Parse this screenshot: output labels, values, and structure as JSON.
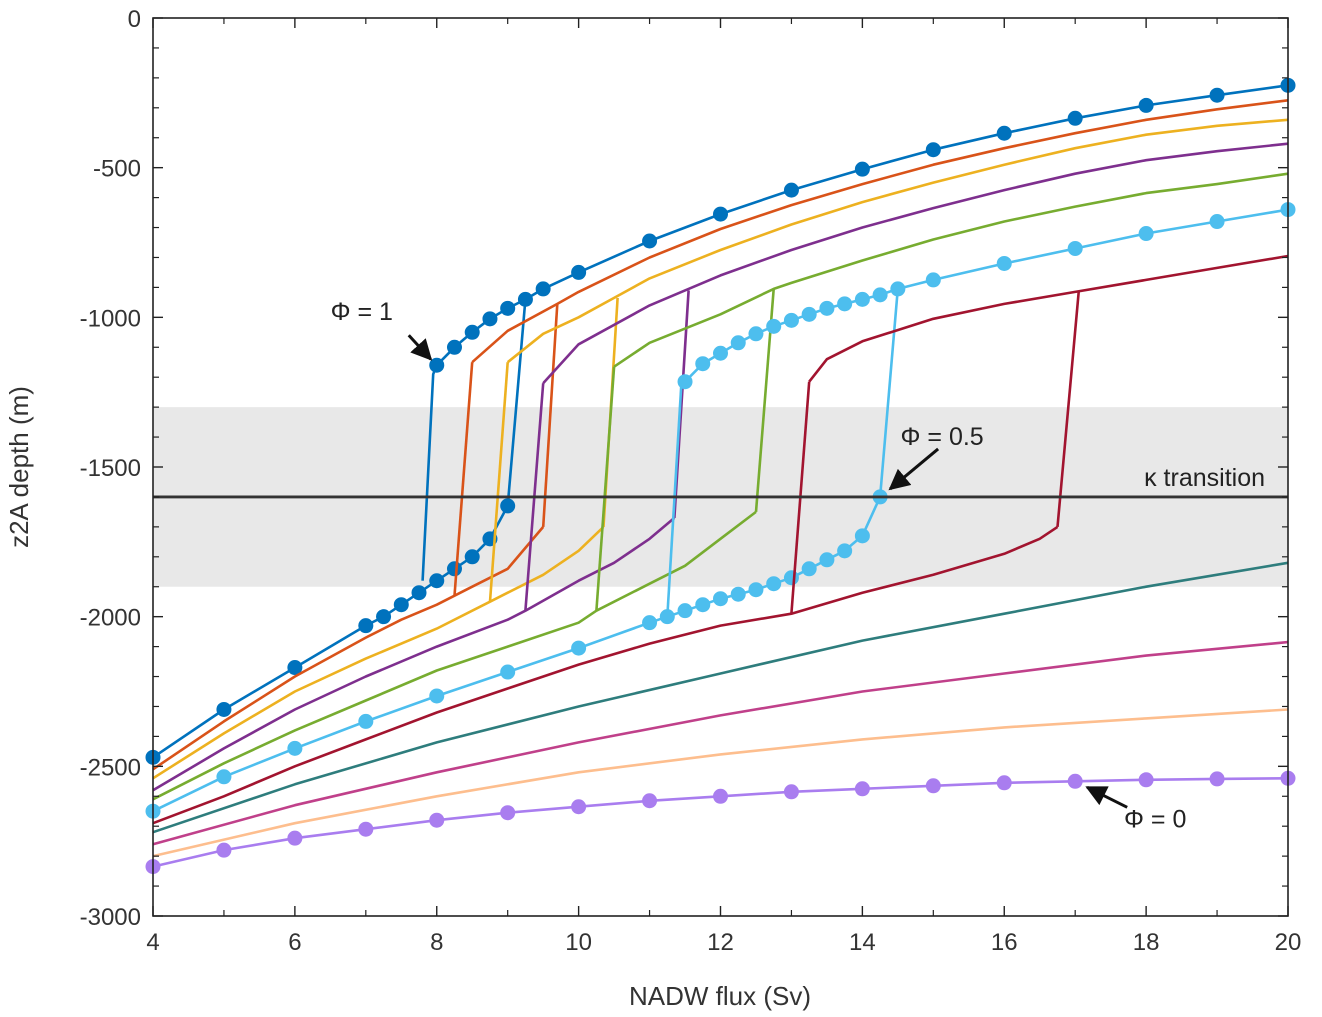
{
  "chart_data": {
    "type": "line",
    "title": "",
    "xlabel": "NADW flux (Sv)",
    "ylabel": "z2A depth (m)",
    "xlim": [
      4,
      20
    ],
    "ylim": [
      -3000,
      0
    ],
    "xticks": [
      4,
      6,
      8,
      10,
      12,
      14,
      16,
      18,
      20
    ],
    "yticks": [
      0,
      -500,
      -1000,
      -1500,
      -2000,
      -2500,
      -3000
    ],
    "grid": false,
    "legend": "none",
    "band": {
      "y": [
        -1900,
        -1300
      ],
      "color": "#e8e8e8"
    },
    "transition_line": {
      "y": -1600,
      "label": "κ transition",
      "color": "#333333"
    },
    "annotations": [
      {
        "text": "Φ = 1",
        "point": [
          8.0,
          -1160
        ]
      },
      {
        "text": "Φ = 0.5",
        "point": [
          14.25,
          -1600
        ]
      },
      {
        "text": "Φ = 0",
        "point": [
          17.0,
          -2550
        ]
      }
    ],
    "series": [
      {
        "color": "#0072BD",
        "markers": true,
        "upper": [
          [
            8.0,
            -1160
          ],
          [
            8.25,
            -1100
          ],
          [
            8.5,
            -1050
          ],
          [
            8.75,
            -1005
          ],
          [
            9.0,
            -970
          ],
          [
            9.25,
            -940
          ],
          [
            9.5,
            -905
          ],
          [
            10,
            -850
          ],
          [
            11,
            -745
          ],
          [
            12,
            -655
          ],
          [
            13,
            -575
          ],
          [
            14,
            -505
          ],
          [
            15,
            -440
          ],
          [
            16,
            -385
          ],
          [
            17,
            -335
          ],
          [
            18,
            -292
          ],
          [
            19,
            -258
          ],
          [
            20,
            -225
          ]
        ],
        "lower": [
          [
            4,
            -2470
          ],
          [
            5,
            -2310
          ],
          [
            6,
            -2170
          ],
          [
            7,
            -2030
          ],
          [
            7.25,
            -2000
          ],
          [
            7.5,
            -1960
          ],
          [
            7.75,
            -1920
          ],
          [
            8.0,
            -1880
          ],
          [
            8.25,
            -1840
          ],
          [
            8.5,
            -1800
          ],
          [
            8.75,
            -1740
          ],
          [
            9.0,
            -1630
          ]
        ],
        "up_jump": [
          [
            9.0,
            -1630
          ],
          [
            9.25,
            -940
          ]
        ],
        "down_jump": [
          [
            7.8,
            -1880
          ],
          [
            7.95,
            -1190
          ],
          [
            8.0,
            -1160
          ]
        ]
      },
      {
        "color": "#D95319",
        "markers": false,
        "upper": [
          [
            8.5,
            -1150
          ],
          [
            9,
            -1045
          ],
          [
            9.7,
            -955
          ],
          [
            10,
            -915
          ],
          [
            11,
            -800
          ],
          [
            12,
            -705
          ],
          [
            13,
            -625
          ],
          [
            14,
            -555
          ],
          [
            15,
            -490
          ],
          [
            16,
            -435
          ],
          [
            17,
            -385
          ],
          [
            18,
            -340
          ],
          [
            19,
            -305
          ],
          [
            20,
            -275
          ]
        ],
        "lower": [
          [
            4,
            -2510
          ],
          [
            5,
            -2350
          ],
          [
            6,
            -2200
          ],
          [
            7,
            -2070
          ],
          [
            7.5,
            -2010
          ],
          [
            8,
            -1960
          ],
          [
            8.5,
            -1900
          ],
          [
            9,
            -1840
          ],
          [
            9.5,
            -1700
          ]
        ],
        "up_jump": [
          [
            9.5,
            -1700
          ],
          [
            9.7,
            -955
          ]
        ],
        "down_jump": [
          [
            8.25,
            -1930
          ],
          [
            8.5,
            -1150
          ]
        ]
      },
      {
        "color": "#EDB120",
        "markers": false,
        "upper": [
          [
            9.0,
            -1150
          ],
          [
            9.5,
            -1055
          ],
          [
            10,
            -1000
          ],
          [
            10.5,
            -935
          ],
          [
            11,
            -870
          ],
          [
            12,
            -775
          ],
          [
            13,
            -690
          ],
          [
            14,
            -615
          ],
          [
            15,
            -550
          ],
          [
            16,
            -490
          ],
          [
            17,
            -435
          ],
          [
            18,
            -390
          ],
          [
            19,
            -360
          ],
          [
            20,
            -340
          ]
        ],
        "lower": [
          [
            4,
            -2540
          ],
          [
            5,
            -2390
          ],
          [
            6,
            -2250
          ],
          [
            7,
            -2140
          ],
          [
            8,
            -2040
          ],
          [
            8.75,
            -1950
          ],
          [
            9,
            -1920
          ],
          [
            9.5,
            -1860
          ],
          [
            10,
            -1780
          ],
          [
            10.35,
            -1700
          ]
        ],
        "up_jump": [
          [
            10.35,
            -1700
          ],
          [
            10.55,
            -935
          ]
        ],
        "down_jump": [
          [
            8.75,
            -1950
          ],
          [
            9.0,
            -1150
          ]
        ]
      },
      {
        "color": "#7E2F8E",
        "markers": false,
        "upper": [
          [
            9.5,
            -1220
          ],
          [
            10,
            -1090
          ],
          [
            11,
            -960
          ],
          [
            11.5,
            -910
          ],
          [
            12,
            -860
          ],
          [
            13,
            -775
          ],
          [
            14,
            -700
          ],
          [
            15,
            -635
          ],
          [
            16,
            -575
          ],
          [
            17,
            -520
          ],
          [
            18,
            -475
          ],
          [
            19,
            -445
          ],
          [
            20,
            -420
          ]
        ],
        "lower": [
          [
            4,
            -2580
          ],
          [
            5,
            -2440
          ],
          [
            6,
            -2310
          ],
          [
            7,
            -2200
          ],
          [
            8,
            -2100
          ],
          [
            9,
            -2010
          ],
          [
            9.25,
            -1980
          ],
          [
            10,
            -1880
          ],
          [
            10.5,
            -1820
          ],
          [
            11,
            -1740
          ],
          [
            11.35,
            -1670
          ]
        ],
        "up_jump": [
          [
            11.35,
            -1670
          ],
          [
            11.55,
            -910
          ]
        ],
        "down_jump": [
          [
            9.25,
            -1980
          ],
          [
            9.5,
            -1220
          ]
        ]
      },
      {
        "color": "#77AC30",
        "markers": false,
        "upper": [
          [
            10.5,
            -1165
          ],
          [
            11,
            -1085
          ],
          [
            12,
            -990
          ],
          [
            12.75,
            -905
          ],
          [
            13,
            -885
          ],
          [
            14,
            -810
          ],
          [
            15,
            -740
          ],
          [
            16,
            -680
          ],
          [
            17,
            -630
          ],
          [
            18,
            -585
          ],
          [
            19,
            -555
          ],
          [
            20,
            -520
          ]
        ],
        "lower": [
          [
            4,
            -2610
          ],
          [
            5,
            -2490
          ],
          [
            6,
            -2380
          ],
          [
            7,
            -2280
          ],
          [
            8,
            -2180
          ],
          [
            9,
            -2100
          ],
          [
            10,
            -2020
          ],
          [
            10.25,
            -1980
          ],
          [
            11,
            -1890
          ],
          [
            11.5,
            -1830
          ],
          [
            12,
            -1740
          ],
          [
            12.5,
            -1650
          ]
        ],
        "up_jump": [
          [
            12.5,
            -1650
          ],
          [
            12.75,
            -905
          ]
        ],
        "down_jump": [
          [
            10.25,
            -1980
          ],
          [
            10.5,
            -1165
          ]
        ]
      },
      {
        "color": "#4DBEEE",
        "markers": true,
        "upper": [
          [
            11.5,
            -1215
          ],
          [
            11.75,
            -1155
          ],
          [
            12.0,
            -1120
          ],
          [
            12.25,
            -1085
          ],
          [
            12.5,
            -1055
          ],
          [
            12.75,
            -1030
          ],
          [
            13.0,
            -1010
          ],
          [
            13.25,
            -990
          ],
          [
            13.5,
            -970
          ],
          [
            13.75,
            -955
          ],
          [
            14.0,
            -940
          ],
          [
            14.25,
            -925
          ],
          [
            14.5,
            -905
          ],
          [
            15,
            -875
          ],
          [
            16,
            -820
          ],
          [
            17,
            -770
          ],
          [
            18,
            -720
          ],
          [
            19,
            -680
          ],
          [
            20,
            -640
          ]
        ],
        "lower": [
          [
            4,
            -2650
          ],
          [
            5,
            -2535
          ],
          [
            6,
            -2440
          ],
          [
            7,
            -2350
          ],
          [
            8,
            -2265
          ],
          [
            9,
            -2185
          ],
          [
            10,
            -2105
          ],
          [
            11,
            -2020
          ],
          [
            11.25,
            -2000
          ],
          [
            11.5,
            -1980
          ],
          [
            11.75,
            -1960
          ],
          [
            12.0,
            -1940
          ],
          [
            12.25,
            -1925
          ],
          [
            12.5,
            -1910
          ],
          [
            12.75,
            -1890
          ],
          [
            13.0,
            -1870
          ],
          [
            13.25,
            -1840
          ],
          [
            13.5,
            -1810
          ],
          [
            13.75,
            -1780
          ],
          [
            14.0,
            -1730
          ],
          [
            14.25,
            -1600
          ]
        ],
        "up_jump": [
          [
            14.25,
            -1600
          ],
          [
            14.5,
            -905
          ]
        ],
        "down_jump": [
          [
            11.25,
            -2000
          ],
          [
            11.45,
            -1215
          ]
        ]
      },
      {
        "color": "#A2142F",
        "markers": false,
        "upper": [
          [
            13.25,
            -1215
          ],
          [
            13.5,
            -1140
          ],
          [
            14,
            -1080
          ],
          [
            15,
            -1005
          ],
          [
            16,
            -955
          ],
          [
            17,
            -915
          ],
          [
            18,
            -875
          ],
          [
            19,
            -835
          ],
          [
            20,
            -795
          ]
        ],
        "lower": [
          [
            4,
            -2690
          ],
          [
            5,
            -2600
          ],
          [
            6,
            -2500
          ],
          [
            7,
            -2410
          ],
          [
            8,
            -2320
          ],
          [
            9,
            -2240
          ],
          [
            10,
            -2160
          ],
          [
            11,
            -2090
          ],
          [
            12,
            -2030
          ],
          [
            13,
            -1990
          ],
          [
            14,
            -1920
          ],
          [
            15,
            -1860
          ],
          [
            16,
            -1790
          ],
          [
            16.5,
            -1740
          ],
          [
            16.75,
            -1700
          ]
        ],
        "up_jump": [
          [
            16.75,
            -1700
          ],
          [
            17.05,
            -915
          ]
        ],
        "down_jump": [
          [
            13.0,
            -1990
          ],
          [
            13.25,
            -1215
          ]
        ]
      },
      {
        "color": "#2E7D7D",
        "markers": false,
        "upper": [],
        "lower": [
          [
            4,
            -2720
          ],
          [
            6,
            -2560
          ],
          [
            8,
            -2420
          ],
          [
            10,
            -2300
          ],
          [
            12,
            -2190
          ],
          [
            14,
            -2080
          ],
          [
            16,
            -1990
          ],
          [
            18,
            -1900
          ],
          [
            20,
            -1820
          ]
        ],
        "up_jump": [],
        "down_jump": []
      },
      {
        "color": "#C0408A",
        "markers": false,
        "upper": [],
        "lower": [
          [
            4,
            -2760
          ],
          [
            6,
            -2630
          ],
          [
            8,
            -2520
          ],
          [
            10,
            -2420
          ],
          [
            12,
            -2330
          ],
          [
            14,
            -2250
          ],
          [
            16,
            -2190
          ],
          [
            18,
            -2130
          ],
          [
            20,
            -2085
          ]
        ],
        "up_jump": [],
        "down_jump": []
      },
      {
        "color": "#FDBE8E",
        "markers": false,
        "upper": [],
        "lower": [
          [
            4,
            -2800
          ],
          [
            6,
            -2690
          ],
          [
            8,
            -2600
          ],
          [
            10,
            -2520
          ],
          [
            12,
            -2460
          ],
          [
            14,
            -2410
          ],
          [
            16,
            -2370
          ],
          [
            18,
            -2340
          ],
          [
            20,
            -2310
          ]
        ],
        "up_jump": [],
        "down_jump": []
      },
      {
        "color": "#A97DEF",
        "markers": true,
        "upper": [],
        "lower": [
          [
            4,
            -2835
          ],
          [
            5,
            -2780
          ],
          [
            6,
            -2740
          ],
          [
            7,
            -2710
          ],
          [
            8,
            -2680
          ],
          [
            9,
            -2655
          ],
          [
            10,
            -2635
          ],
          [
            11,
            -2615
          ],
          [
            12,
            -2600
          ],
          [
            13,
            -2585
          ],
          [
            14,
            -2575
          ],
          [
            15,
            -2565
          ],
          [
            16,
            -2555
          ],
          [
            17,
            -2550
          ],
          [
            18,
            -2545
          ],
          [
            19,
            -2542
          ],
          [
            20,
            -2540
          ]
        ],
        "up_jump": [],
        "down_jump": []
      }
    ]
  }
}
